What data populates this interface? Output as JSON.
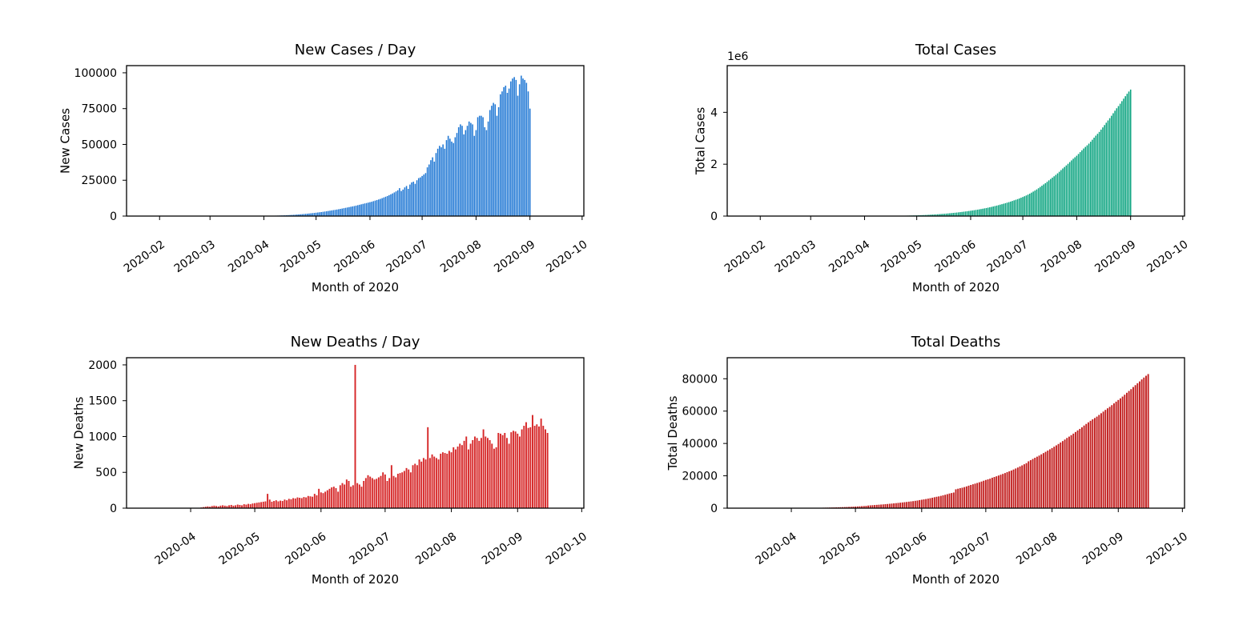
{
  "chart_data": [
    {
      "type": "bar",
      "title": "New Cases / Day",
      "xlabel": "Month of 2020",
      "ylabel": "New Cases",
      "color": "#1f77d4",
      "x_start": "2020-01-22",
      "x_range": [
        "2020-01-13",
        "2020-10-02"
      ],
      "xticks": [
        "2020-02",
        "2020-03",
        "2020-04",
        "2020-05",
        "2020-06",
        "2020-07",
        "2020-08",
        "2020-09",
        "2020-10"
      ],
      "ylim": [
        0,
        105000
      ],
      "yticks": [
        0,
        25000,
        50000,
        75000,
        100000
      ],
      "ytick_labels": [
        "0",
        "25000",
        "50000",
        "75000",
        "100000"
      ],
      "offset_label": "",
      "values": [
        0,
        0,
        0,
        0,
        0,
        0,
        0,
        0,
        0,
        0,
        0,
        0,
        0,
        0,
        0,
        0,
        0,
        0,
        0,
        0,
        0,
        0,
        0,
        0,
        0,
        0,
        0,
        0,
        0,
        0,
        0,
        0,
        0,
        0,
        0,
        0,
        0,
        0,
        0,
        0,
        0,
        0,
        0,
        0,
        0,
        0,
        0,
        0,
        0,
        0,
        0,
        0,
        0,
        0,
        0,
        0,
        0,
        0,
        0,
        0,
        0,
        0,
        0,
        0,
        0,
        0,
        0,
        0,
        0,
        0,
        100,
        120,
        150,
        180,
        200,
        230,
        260,
        300,
        340,
        380,
        430,
        480,
        540,
        600,
        660,
        730,
        800,
        880,
        970,
        1060,
        1150,
        1250,
        1350,
        1460,
        1570,
        1680,
        1800,
        1930,
        2060,
        2200,
        2350,
        2500,
        2650,
        2800,
        2980,
        3150,
        3350,
        3550,
        3750,
        3950,
        4150,
        4350,
        4560,
        4780,
        5000,
        5250,
        5500,
        5750,
        6000,
        6250,
        6500,
        6750,
        7000,
        7300,
        7600,
        7900,
        8200,
        8500,
        8800,
        9100,
        9400,
        9700,
        10000,
        10400,
        10800,
        11200,
        11600,
        12000,
        12500,
        13000,
        13500,
        14000,
        14600,
        15200,
        15800,
        16500,
        17200,
        18000,
        19500,
        17500,
        18500,
        20000,
        21000,
        19000,
        22000,
        23500,
        24000,
        22500,
        25000,
        26500,
        27000,
        28000,
        29000,
        30000,
        34000,
        36000,
        39000,
        41000,
        38000,
        44000,
        47000,
        49000,
        48000,
        50000,
        47000,
        53000,
        56000,
        54000,
        52000,
        51000,
        55000,
        58000,
        62000,
        64000,
        63000,
        57000,
        60000,
        63000,
        66000,
        65000,
        64000,
        56000,
        60000,
        69000,
        70000,
        70000,
        69000,
        62000,
        60000,
        66000,
        74000,
        77000,
        79000,
        78000,
        70000,
        76000,
        85000,
        87000,
        90000,
        91000,
        86000,
        89000,
        94000,
        96000,
        97000,
        95000,
        84000,
        92000,
        98000,
        96000,
        95000,
        93000,
        87000,
        75000
      ]
    },
    {
      "type": "bar",
      "title": "Total Cases",
      "xlabel": "Month of 2020",
      "ylabel": "Total Cases",
      "color": "#0aa37f",
      "x_start": "2020-01-22",
      "x_range": [
        "2020-01-13",
        "2020-10-02"
      ],
      "xticks": [
        "2020-02",
        "2020-03",
        "2020-04",
        "2020-05",
        "2020-06",
        "2020-07",
        "2020-08",
        "2020-09",
        "2020-10"
      ],
      "ylim": [
        0,
        5.8
      ],
      "yticks": [
        0,
        2,
        4
      ],
      "ytick_labels": [
        "0",
        "2",
        "4"
      ],
      "offset_label": "1e6",
      "values_from_cumulative_of": 0
    },
    {
      "type": "bar",
      "title": "New Deaths / Day",
      "xlabel": "Month of 2020",
      "ylabel": "New Deaths",
      "color": "#d62728",
      "x_start": "2020-03-13",
      "x_range": [
        "2020-03-02",
        "2020-10-02"
      ],
      "xticks": [
        "2020-04",
        "2020-05",
        "2020-06",
        "2020-07",
        "2020-08",
        "2020-09",
        "2020-10"
      ],
      "ylim": [
        0,
        2100
      ],
      "yticks": [
        0,
        500,
        1000,
        1500,
        2000
      ],
      "ytick_labels": [
        "0",
        "500",
        "1000",
        "1500",
        "2000"
      ],
      "offset_label": "",
      "values": [
        0,
        0,
        0,
        0,
        0,
        0,
        0,
        0,
        0,
        0,
        0,
        0,
        0,
        0,
        0,
        0,
        0,
        0,
        0,
        0,
        0,
        0,
        0,
        0,
        10,
        15,
        20,
        25,
        20,
        30,
        35,
        30,
        25,
        35,
        40,
        35,
        30,
        40,
        45,
        35,
        40,
        50,
        45,
        40,
        55,
        50,
        60,
        55,
        65,
        70,
        75,
        80,
        85,
        90,
        95,
        200,
        120,
        90,
        100,
        110,
        95,
        105,
        100,
        120,
        110,
        130,
        125,
        140,
        135,
        150,
        145,
        140,
        155,
        150,
        170,
        165,
        160,
        200,
        180,
        270,
        220,
        210,
        230,
        250,
        270,
        290,
        300,
        280,
        230,
        320,
        350,
        330,
        400,
        380,
        300,
        320,
        2000,
        350,
        330,
        300,
        380,
        420,
        460,
        440,
        420,
        400,
        410,
        430,
        450,
        500,
        470,
        380,
        420,
        600,
        450,
        430,
        480,
        490,
        500,
        520,
        560,
        540,
        500,
        600,
        620,
        600,
        680,
        650,
        700,
        680,
        1130,
        700,
        750,
        720,
        700,
        680,
        760,
        780,
        770,
        760,
        800,
        780,
        850,
        820,
        860,
        900,
        880,
        940,
        1000,
        820,
        900,
        950,
        1000,
        980,
        940,
        980,
        1100,
        1000,
        980,
        950,
        900,
        830,
        850,
        1050,
        1040,
        1020,
        1050,
        980,
        900,
        1060,
        1080,
        1070,
        1040,
        1000,
        1100,
        1150,
        1200,
        1120,
        1130,
        1300,
        1150,
        1170,
        1140,
        1250,
        1150,
        1100,
        1050
      ]
    },
    {
      "type": "bar",
      "title": "Total Deaths",
      "xlabel": "Month of 2020",
      "ylabel": "Total Deaths",
      "color": "#c21f1f",
      "x_start": "2020-03-13",
      "x_range": [
        "2020-03-02",
        "2020-10-02"
      ],
      "xticks": [
        "2020-04",
        "2020-05",
        "2020-06",
        "2020-07",
        "2020-08",
        "2020-09",
        "2020-10"
      ],
      "ylim": [
        0,
        93000
      ],
      "yticks": [
        0,
        20000,
        40000,
        60000,
        80000
      ],
      "ytick_labels": [
        "0",
        "20000",
        "40000",
        "60000",
        "80000"
      ],
      "offset_label": "",
      "values_from_cumulative_of": 2
    }
  ]
}
